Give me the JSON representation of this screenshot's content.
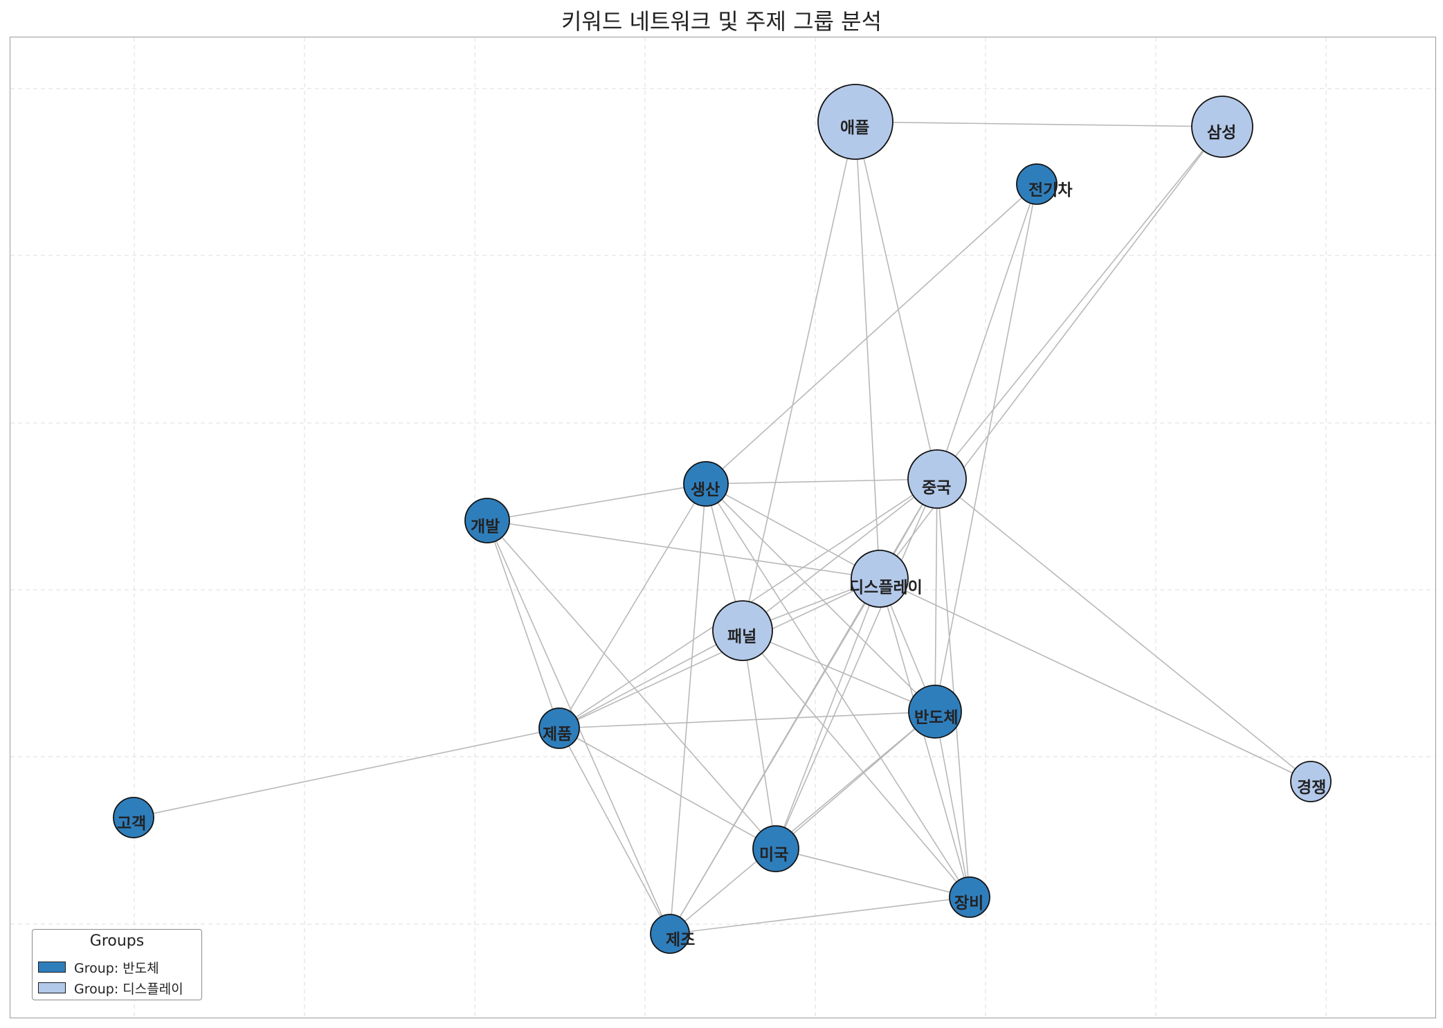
{
  "title": "키워드 네트워크 및 주제 그룹 분석",
  "colors": {
    "group_a": "#2f7ebc",
    "group_b": "#b3c9ea",
    "edge": "#b8b8b8",
    "grid": "#e3e3e3"
  },
  "legend": {
    "title": "Groups",
    "items": [
      {
        "label": "Group: 반도체",
        "color": "#2f7ebc"
      },
      {
        "label": "Group: 디스플레이",
        "color": "#b3c9ea"
      }
    ]
  },
  "nodes": [
    {
      "id": "애플",
      "group": "디스플레이"
    },
    {
      "id": "삼성",
      "group": "디스플레이"
    },
    {
      "id": "전기차",
      "group": "반도체"
    },
    {
      "id": "중국",
      "group": "디스플레이"
    },
    {
      "id": "생산",
      "group": "반도체"
    },
    {
      "id": "개발",
      "group": "반도체"
    },
    {
      "id": "디스플레이",
      "group": "디스플레이"
    },
    {
      "id": "패널",
      "group": "디스플레이"
    },
    {
      "id": "반도체",
      "group": "반도체"
    },
    {
      "id": "제품",
      "group": "반도체"
    },
    {
      "id": "경쟁",
      "group": "디스플레이"
    },
    {
      "id": "고객",
      "group": "반도체"
    },
    {
      "id": "미국",
      "group": "반도체"
    },
    {
      "id": "장비",
      "group": "반도체"
    },
    {
      "id": "제조",
      "group": "반도체"
    }
  ],
  "edges": [
    [
      "애플",
      "삼성"
    ],
    [
      "애플",
      "디스플레이"
    ],
    [
      "애플",
      "중국"
    ],
    [
      "애플",
      "패널"
    ],
    [
      "삼성",
      "중국"
    ],
    [
      "삼성",
      "디스플레이"
    ],
    [
      "전기차",
      "생산"
    ],
    [
      "전기차",
      "중국"
    ],
    [
      "전기차",
      "반도체"
    ],
    [
      "중국",
      "생산"
    ],
    [
      "중국",
      "디스플레이"
    ],
    [
      "중국",
      "패널"
    ],
    [
      "중국",
      "반도체"
    ],
    [
      "중국",
      "장비"
    ],
    [
      "중국",
      "경쟁"
    ],
    [
      "중국",
      "미국"
    ],
    [
      "중국",
      "제조"
    ],
    [
      "중국",
      "제품"
    ],
    [
      "생산",
      "개발"
    ],
    [
      "생산",
      "디스플레이"
    ],
    [
      "생산",
      "패널"
    ],
    [
      "생산",
      "반도체"
    ],
    [
      "생산",
      "제품"
    ],
    [
      "생산",
      "장비"
    ],
    [
      "생산",
      "제조"
    ],
    [
      "개발",
      "디스플레이"
    ],
    [
      "개발",
      "제품"
    ],
    [
      "개발",
      "미국"
    ],
    [
      "개발",
      "제조"
    ],
    [
      "디스플레이",
      "패널"
    ],
    [
      "디스플레이",
      "반도체"
    ],
    [
      "디스플레이",
      "경쟁"
    ],
    [
      "디스플레이",
      "미국"
    ],
    [
      "디스플레이",
      "장비"
    ],
    [
      "디스플레이",
      "제조"
    ],
    [
      "디스플레이",
      "제품"
    ],
    [
      "패널",
      "반도체"
    ],
    [
      "패널",
      "제품"
    ],
    [
      "패널",
      "미국"
    ],
    [
      "패널",
      "장비"
    ],
    [
      "반도체",
      "제품"
    ],
    [
      "반도체",
      "미국"
    ],
    [
      "반도체",
      "제조"
    ],
    [
      "반도체",
      "장비"
    ],
    [
      "제품",
      "고객"
    ],
    [
      "제품",
      "미국"
    ],
    [
      "제품",
      "제조"
    ],
    [
      "미국",
      "장비"
    ],
    [
      "장비",
      "제조"
    ]
  ]
}
